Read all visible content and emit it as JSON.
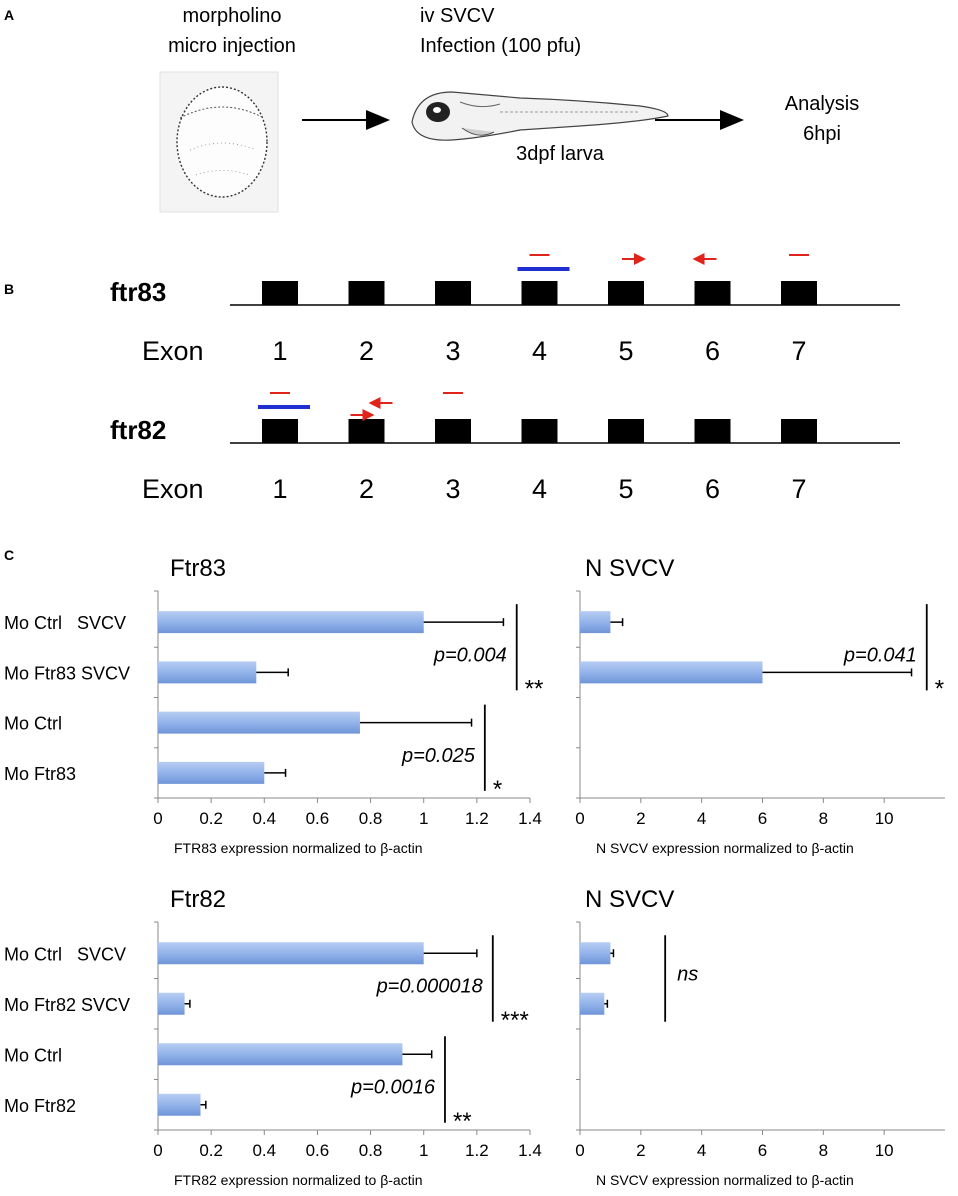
{
  "panel_a": {
    "label": "A",
    "step1": [
      "morpholino",
      "micro injection"
    ],
    "step2": [
      "iv SVCV",
      "Infection (100 pfu)"
    ],
    "larva_caption": "3dpf larva",
    "step3": [
      "Analysis",
      "6hpi"
    ]
  },
  "panel_b": {
    "label": "B",
    "exon_label": "Exon",
    "exon_numbers": [
      "1",
      "2",
      "3",
      "4",
      "5",
      "6",
      "7"
    ],
    "genes": [
      {
        "name": "ftr83",
        "primers": [
          {
            "kind": "mo-bar",
            "exon": 4
          },
          {
            "kind": "dash",
            "exon": 4
          },
          {
            "kind": "arrow-right",
            "exon": 5
          },
          {
            "kind": "arrow-left",
            "exon": 6
          },
          {
            "kind": "dash",
            "exon": 7
          }
        ]
      },
      {
        "name": "ftr82",
        "primers": [
          {
            "kind": "mo-bar",
            "exon": 1
          },
          {
            "kind": "dash",
            "exon": 1
          },
          {
            "kind": "arrow-right",
            "exon": 2
          },
          {
            "kind": "arrow-left",
            "exon": 2
          },
          {
            "kind": "dash",
            "exon": 3
          }
        ]
      }
    ],
    "colors": {
      "morpholino": "#1f2fd0",
      "primer": "#e0231b",
      "exon": "#000000"
    }
  },
  "panel_c": {
    "label": "C"
  },
  "chart_data": [
    {
      "type": "bar",
      "orientation": "horizontal",
      "title": "Ftr83",
      "categories": [
        "Mo Ctrl   SVCV",
        "Mo Ftr83 SVCV",
        "Mo Ctrl",
        "Mo Ftr83"
      ],
      "values": [
        1.0,
        0.37,
        0.76,
        0.4
      ],
      "error": [
        0.3,
        0.12,
        0.42,
        0.08
      ],
      "xlim": [
        0,
        1.4
      ],
      "xticks": [
        "0",
        "0.2",
        "0.4",
        "0.6",
        "0.8",
        "1",
        "1.2",
        "1.4"
      ],
      "xlabel": "FTR83 expression normalized to β-actin",
      "annotations": [
        {
          "text": "p=0.004",
          "stars": "**",
          "rows": [
            0,
            1
          ],
          "at": 1.35
        },
        {
          "text": "p=0.025",
          "stars": "*",
          "rows": [
            2,
            3
          ],
          "at": 1.23
        }
      ],
      "bar_color": "#93b3ea"
    },
    {
      "type": "bar",
      "orientation": "horizontal",
      "title": "N SVCV",
      "categories": [
        "Mo Ctrl   SVCV",
        "Mo Ftr83 SVCV",
        "Mo Ctrl",
        "Mo Ftr83"
      ],
      "values": [
        1.0,
        6.0,
        0,
        0
      ],
      "error": [
        0.4,
        4.9,
        0,
        0
      ],
      "xlim": [
        0,
        12
      ],
      "xticks": [
        "0",
        "2",
        "4",
        "6",
        "8",
        "10"
      ],
      "xlabel": "N SVCV expression normalized to β-actin",
      "annotations": [
        {
          "text": "p=0.041",
          "stars": "*",
          "rows": [
            0,
            1
          ],
          "at": 11.4
        }
      ],
      "bar_color": "#93b3ea"
    },
    {
      "type": "bar",
      "orientation": "horizontal",
      "title": "Ftr82",
      "categories": [
        "Mo Ctrl   SVCV",
        "Mo Ftr82 SVCV",
        "Mo Ctrl",
        "Mo Ftr82"
      ],
      "values": [
        1.0,
        0.1,
        0.92,
        0.16
      ],
      "error": [
        0.2,
        0.02,
        0.11,
        0.02
      ],
      "xlim": [
        0,
        1.4
      ],
      "xticks": [
        "0",
        "0.2",
        "0.4",
        "0.6",
        "0.8",
        "1",
        "1.2",
        "1.4"
      ],
      "xlabel": "FTR82 expression normalized to β-actin",
      "annotations": [
        {
          "text": "p=0.000018",
          "stars": "***",
          "rows": [
            0,
            1
          ],
          "at": 1.26
        },
        {
          "text": "p=0.0016",
          "stars": "**",
          "rows": [
            2,
            3
          ],
          "at": 1.08
        }
      ],
      "bar_color": "#93b3ea"
    },
    {
      "type": "bar",
      "orientation": "horizontal",
      "title": "N SVCV",
      "categories": [
        "Mo Ctrl   SVCV",
        "Mo Ftr82 SVCV",
        "Mo Ctrl",
        "Mo Ftr82"
      ],
      "values": [
        1.0,
        0.8,
        0,
        0
      ],
      "error": [
        0.1,
        0.1,
        0,
        0
      ],
      "xlim": [
        0,
        12
      ],
      "xticks": [
        "0",
        "2",
        "4",
        "6",
        "8",
        "10"
      ],
      "xlabel": "N SVCV expression normalized to β-actin",
      "annotations": [
        {
          "text": "ns",
          "stars": "",
          "rows": [
            0,
            1
          ],
          "at": 2.8
        }
      ],
      "bar_color": "#93b3ea"
    }
  ]
}
